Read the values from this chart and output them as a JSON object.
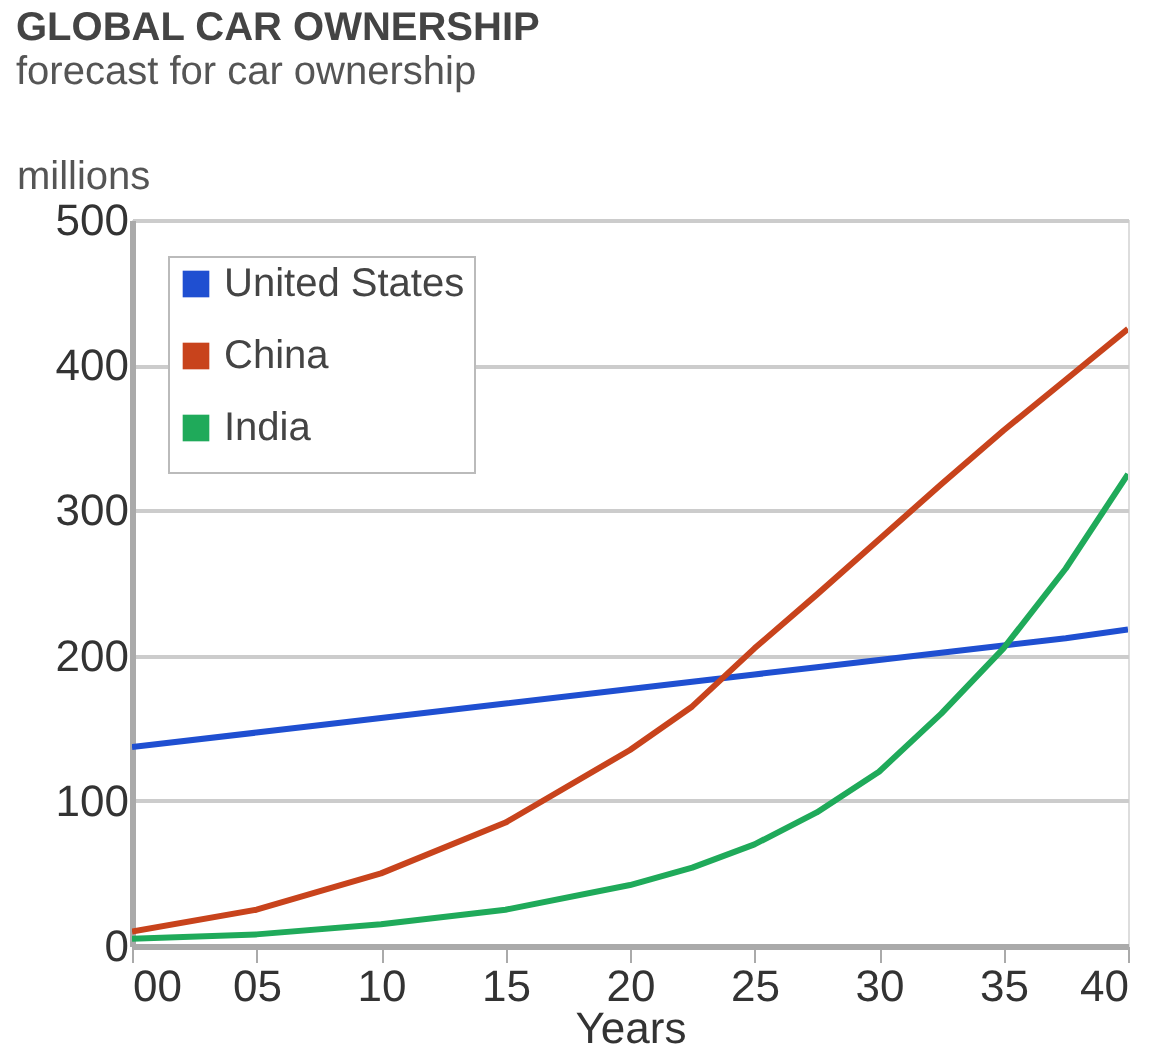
{
  "chart_data": {
    "type": "line",
    "title": "GLOBAL CAR OWNERSHIP",
    "subtitle": "forecast for car ownership",
    "ylabel": "millions",
    "xlabel": "Years",
    "x": [
      0,
      5,
      10,
      15,
      20,
      22.5,
      25,
      27.5,
      30,
      32.5,
      35,
      37.5,
      40
    ],
    "series": [
      {
        "name": "United States",
        "color": "#1f4fd1",
        "values": [
          137,
          147,
          157,
          167,
          177,
          182,
          187,
          192,
          197,
          202,
          207,
          212,
          218
        ]
      },
      {
        "name": "China",
        "color": "#c8431c",
        "values": [
          10,
          25,
          50,
          85,
          135,
          165,
          205,
          242,
          280,
          318,
          355,
          390,
          425
        ]
      },
      {
        "name": "India",
        "color": "#1faa5a",
        "values": [
          5,
          8,
          15,
          25,
          42,
          54,
          70,
          92,
          120,
          160,
          205,
          260,
          325
        ]
      }
    ],
    "xlim": [
      0,
      40
    ],
    "ylim": [
      0,
      500
    ],
    "xticks": [
      {
        "value": 0,
        "label": "00"
      },
      {
        "value": 5,
        "label": "05"
      },
      10,
      15,
      20,
      25,
      30,
      35,
      40
    ],
    "yticks": [
      0,
      100,
      200,
      300,
      400,
      500
    ],
    "grid": "y",
    "legend": "top left",
    "marker": "none",
    "line_style": "solid"
  }
}
